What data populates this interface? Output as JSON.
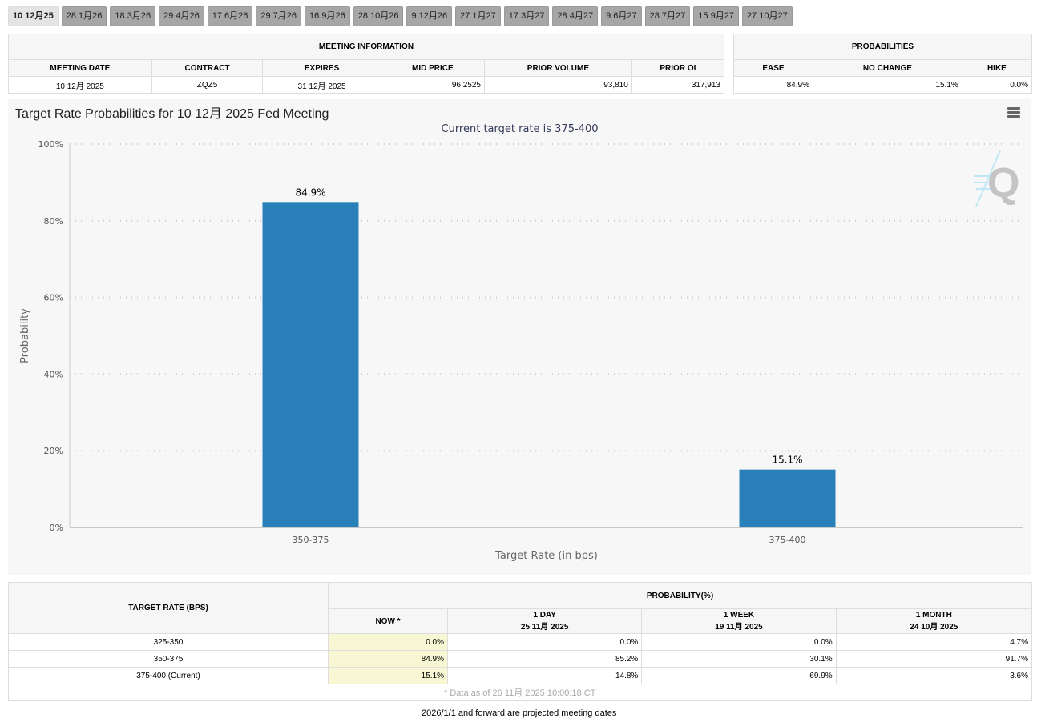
{
  "tabs": [
    "10 12月25",
    "28 1月26",
    "18 3月26",
    "29 4月26",
    "17 6月26",
    "29 7月26",
    "16 9月26",
    "28 10月26",
    "9 12月26",
    "27 1月27",
    "17 3月27",
    "28 4月27",
    "9 6月27",
    "28 7月27",
    "15 9月27",
    "27 10月27"
  ],
  "meeting": {
    "title": "MEETING INFORMATION",
    "headers": [
      "MEETING DATE",
      "CONTRACT",
      "EXPIRES",
      "MID PRICE",
      "PRIOR VOLUME",
      "PRIOR OI"
    ],
    "values": [
      "10 12月 2025",
      "ZQZ5",
      "31 12月 2025",
      "96.2525",
      "93,810",
      "317,913"
    ]
  },
  "probabilities": {
    "title": "PROBABILITIES",
    "headers": [
      "EASE",
      "NO CHANGE",
      "HIKE"
    ],
    "values": [
      "84.9%",
      "15.1%",
      "0.0%"
    ]
  },
  "chart_data": {
    "type": "bar",
    "title": "Target Rate Probabilities for 10 12月 2025 Fed Meeting",
    "subtitle": "Current target rate is 375-400",
    "xlabel": "Target Rate (in bps)",
    "ylabel": "Probability",
    "categories": [
      "350-375",
      "375-400"
    ],
    "values": [
      84.9,
      15.1
    ],
    "data_labels": [
      "84.9%",
      "15.1%"
    ],
    "ylim": [
      0,
      100
    ],
    "yticks": [
      "0%",
      "20%",
      "40%",
      "60%",
      "80%",
      "100%"
    ],
    "grid": true,
    "bar_color": "#2980b9"
  },
  "bottom": {
    "rate_header": "TARGET RATE (BPS)",
    "prob_header": "PROBABILITY(%)",
    "cols": [
      {
        "l1": "NOW *",
        "l2": ""
      },
      {
        "l1": "1 DAY",
        "l2": "25 11月 2025"
      },
      {
        "l1": "1 WEEK",
        "l2": "19 11月 2025"
      },
      {
        "l1": "1 MONTH",
        "l2": "24 10月 2025"
      }
    ],
    "rows": [
      {
        "rate": "325-350",
        "v": [
          "0.0%",
          "0.0%",
          "0.0%",
          "4.7%"
        ]
      },
      {
        "rate": "350-375",
        "v": [
          "84.9%",
          "85.2%",
          "30.1%",
          "91.7%"
        ]
      },
      {
        "rate": "375-400 (Current)",
        "v": [
          "15.1%",
          "14.8%",
          "69.9%",
          "3.6%"
        ]
      }
    ],
    "footnote": "* Data as of 26 11月 2025 10:00:18 CT"
  },
  "note": "2026/1/1 and forward are projected meeting dates"
}
